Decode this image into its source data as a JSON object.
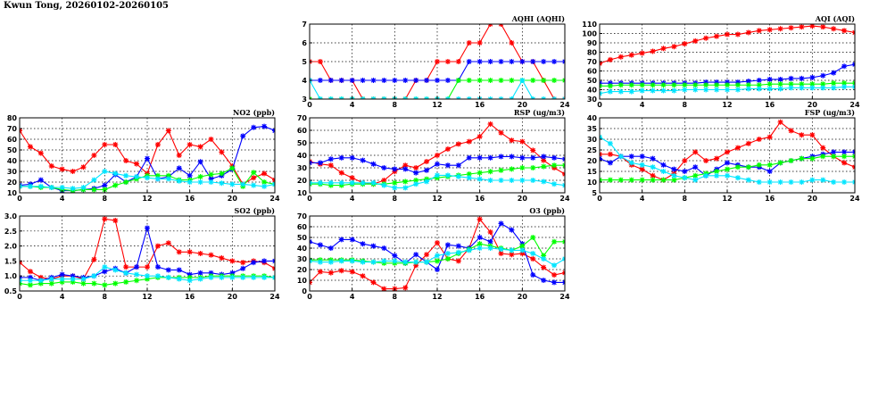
{
  "page": {
    "title": "Kwun Tong, 20260102-20260105"
  },
  "chart_data": [
    {
      "id": "no2",
      "type": "line",
      "title": "NO2 (ppb)",
      "xlim": [
        0,
        24
      ],
      "ylim": [
        10,
        80
      ],
      "xticks": [
        0,
        4,
        8,
        12,
        16,
        20,
        24
      ],
      "yticks": [
        10,
        20,
        30,
        40,
        50,
        60,
        70,
        80
      ],
      "grid": true,
      "x": [
        0,
        1,
        2,
        3,
        4,
        5,
        6,
        7,
        8,
        9,
        10,
        11,
        12,
        13,
        14,
        15,
        16,
        17,
        18,
        19,
        20,
        21,
        22,
        23,
        24
      ],
      "series": [
        {
          "color": "#ff0000",
          "values": [
            68,
            53,
            47,
            35,
            32,
            30,
            34,
            45,
            55,
            55,
            40,
            37,
            28,
            55,
            68,
            45,
            55,
            53,
            60,
            48,
            35,
            18,
            24,
            28,
            22
          ]
        },
        {
          "color": "#0000ff",
          "values": [
            17,
            18,
            22,
            15,
            12,
            12,
            13,
            14,
            17,
            27,
            20,
            25,
            42,
            23,
            25,
            33,
            26,
            39,
            23,
            26,
            32,
            63,
            71,
            72,
            68
          ]
        },
        {
          "color": "#00ff00",
          "values": [
            16,
            16,
            15,
            15,
            13,
            12,
            13,
            13,
            13,
            17,
            20,
            23,
            26,
            26,
            26,
            22,
            22,
            25,
            27,
            28,
            33,
            16,
            29,
            20,
            18
          ]
        },
        {
          "color": "#00e5ff",
          "values": [
            16,
            16,
            16,
            15,
            15,
            14,
            15,
            22,
            30,
            28,
            26,
            25,
            24,
            23,
            23,
            21,
            20,
            20,
            20,
            19,
            18,
            18,
            17,
            16,
            18
          ]
        }
      ]
    },
    {
      "id": "so2",
      "type": "line",
      "title": "SO2 (ppb)",
      "xlim": [
        0,
        24
      ],
      "ylim": [
        0.5,
        3.0
      ],
      "xticks": [
        0,
        4,
        8,
        12,
        16,
        20,
        24
      ],
      "yticks": [
        0.5,
        1.0,
        1.5,
        2.0,
        2.5,
        3.0
      ],
      "ytick_labels": [
        "0.5",
        "1.0",
        "1.5",
        "2.0",
        "2.5",
        "3.0"
      ],
      "grid": true,
      "x": [
        0,
        1,
        2,
        3,
        4,
        5,
        6,
        7,
        8,
        9,
        10,
        11,
        12,
        13,
        14,
        15,
        16,
        17,
        18,
        19,
        20,
        21,
        22,
        23,
        24
      ],
      "series": [
        {
          "color": "#ff0000",
          "values": [
            1.45,
            1.15,
            0.95,
            0.9,
            1.0,
            1.0,
            0.9,
            1.55,
            2.9,
            2.85,
            1.3,
            1.3,
            1.3,
            2.0,
            2.1,
            1.8,
            1.8,
            1.75,
            1.7,
            1.6,
            1.5,
            1.45,
            1.5,
            1.45,
            1.25
          ]
        },
        {
          "color": "#0000ff",
          "values": [
            0.95,
            0.95,
            0.85,
            0.95,
            1.05,
            1.0,
            0.95,
            1.0,
            1.15,
            1.25,
            1.1,
            1.3,
            2.6,
            1.3,
            1.2,
            1.2,
            1.05,
            1.1,
            1.1,
            1.05,
            1.1,
            1.25,
            1.45,
            1.5,
            1.5
          ]
        },
        {
          "color": "#00ff00",
          "values": [
            0.75,
            0.7,
            0.75,
            0.75,
            0.8,
            0.8,
            0.75,
            0.75,
            0.7,
            0.75,
            0.8,
            0.85,
            0.9,
            0.95,
            0.95,
            0.95,
            0.95,
            0.95,
            1.0,
            1.0,
            1.0,
            1.0,
            1.0,
            1.0,
            0.95
          ]
        },
        {
          "color": "#00e5ff",
          "values": [
            0.85,
            0.85,
            0.85,
            0.9,
            0.9,
            0.9,
            0.9,
            1.0,
            1.3,
            1.2,
            1.1,
            1.05,
            1.0,
            1.0,
            0.95,
            0.9,
            0.85,
            0.9,
            0.95,
            0.95,
            0.95,
            0.95,
            0.95,
            0.95,
            0.95
          ]
        }
      ]
    },
    {
      "id": "aqhi",
      "type": "line",
      "title": "AQHI (AQHI)",
      "xlim": [
        0,
        24
      ],
      "ylim": [
        3,
        7
      ],
      "xticks": [
        0,
        4,
        8,
        12,
        16,
        20,
        24
      ],
      "yticks": [
        3,
        4,
        5,
        6,
        7
      ],
      "grid": true,
      "x": [
        0,
        1,
        2,
        3,
        4,
        5,
        6,
        7,
        8,
        9,
        10,
        11,
        12,
        13,
        14,
        15,
        16,
        17,
        18,
        19,
        20,
        21,
        22,
        23,
        24
      ],
      "series": [
        {
          "color": "#ff0000",
          "values": [
            5,
            5,
            4,
            4,
            4,
            3,
            3,
            3,
            3,
            3,
            4,
            4,
            5,
            5,
            5,
            6,
            6,
            7,
            7,
            6,
            5,
            5,
            4,
            3,
            3
          ]
        },
        {
          "color": "#0000ff",
          "values": [
            4,
            4,
            4,
            4,
            4,
            4,
            4,
            4,
            4,
            4,
            4,
            4,
            4,
            4,
            4,
            5,
            5,
            5,
            5,
            5,
            5,
            5,
            5,
            5,
            5
          ]
        },
        {
          "color": "#00ff00",
          "values": [
            3,
            3,
            3,
            3,
            3,
            3,
            3,
            3,
            3,
            3,
            3,
            3,
            3,
            3,
            4,
            4,
            4,
            4,
            4,
            4,
            4,
            4,
            4,
            4,
            4
          ]
        },
        {
          "color": "#00e5ff",
          "values": [
            4,
            3,
            3,
            3,
            3,
            3,
            3,
            3,
            3,
            3,
            3,
            3,
            3,
            3,
            3,
            3,
            3,
            3,
            3,
            3,
            4,
            3,
            3,
            3,
            3
          ]
        }
      ]
    },
    {
      "id": "rsp",
      "type": "line",
      "title": "RSP (ug/m3)",
      "xlim": [
        0,
        24
      ],
      "ylim": [
        10,
        70
      ],
      "xticks": [
        0,
        4,
        8,
        12,
        16,
        20,
        24
      ],
      "yticks": [
        10,
        20,
        30,
        40,
        50,
        60,
        70
      ],
      "grid": true,
      "x": [
        0,
        1,
        2,
        3,
        4,
        5,
        6,
        7,
        8,
        9,
        10,
        11,
        12,
        13,
        14,
        15,
        16,
        17,
        18,
        19,
        20,
        21,
        22,
        23,
        24
      ],
      "series": [
        {
          "color": "#ff0000",
          "values": [
            35,
            33,
            32,
            26,
            22,
            18,
            17,
            20,
            27,
            32,
            30,
            35,
            40,
            45,
            49,
            51,
            55,
            65,
            58,
            52,
            51,
            44,
            36,
            30,
            25
          ]
        },
        {
          "color": "#0000ff",
          "values": [
            34,
            34,
            37,
            38,
            38,
            36,
            33,
            30,
            29,
            29,
            26,
            28,
            33,
            32,
            32,
            38,
            38,
            38,
            39,
            39,
            38,
            38,
            39,
            38,
            37
          ]
        },
        {
          "color": "#00ff00",
          "values": [
            17,
            17,
            16,
            16,
            17,
            17,
            17,
            17,
            18,
            19,
            20,
            21,
            22,
            23,
            24,
            25,
            26,
            27,
            28,
            29,
            30,
            30,
            31,
            32,
            32
          ]
        },
        {
          "color": "#00e5ff",
          "values": [
            18,
            18,
            18,
            18,
            18,
            18,
            18,
            16,
            14,
            14,
            17,
            19,
            24,
            24,
            23,
            22,
            21,
            20,
            20,
            20,
            20,
            20,
            19,
            17,
            16
          ]
        }
      ]
    },
    {
      "id": "o3",
      "type": "line",
      "title": "O3 (ppb)",
      "xlim": [
        0,
        24
      ],
      "ylim": [
        0,
        70
      ],
      "xticks": [
        0,
        4,
        8,
        12,
        16,
        20,
        24
      ],
      "yticks": [
        0,
        10,
        20,
        30,
        40,
        50,
        60,
        70
      ],
      "grid": true,
      "x": [
        0,
        1,
        2,
        3,
        4,
        5,
        6,
        7,
        8,
        9,
        10,
        11,
        12,
        13,
        14,
        15,
        16,
        17,
        18,
        19,
        20,
        21,
        22,
        23,
        24
      ],
      "series": [
        {
          "color": "#ff0000",
          "values": [
            8,
            18,
            17,
            19,
            18,
            14,
            8,
            2,
            2,
            3,
            24,
            34,
            45,
            30,
            28,
            40,
            67,
            55,
            35,
            34,
            35,
            30,
            22,
            15,
            17
          ]
        },
        {
          "color": "#0000ff",
          "values": [
            46,
            43,
            40,
            48,
            48,
            44,
            42,
            40,
            33,
            26,
            34,
            27,
            20,
            43,
            42,
            40,
            50,
            46,
            63,
            57,
            44,
            15,
            10,
            8,
            8
          ]
        },
        {
          "color": "#00ff00",
          "values": [
            29,
            29,
            29,
            29,
            29,
            28,
            27,
            26,
            26,
            26,
            27,
            27,
            28,
            30,
            35,
            39,
            44,
            42,
            40,
            38,
            42,
            50,
            33,
            46,
            46
          ]
        },
        {
          "color": "#00e5ff",
          "values": [
            28,
            27,
            27,
            28,
            28,
            27,
            27,
            28,
            28,
            27,
            27,
            27,
            33,
            35,
            36,
            38,
            40,
            40,
            39,
            38,
            38,
            35,
            30,
            24,
            30
          ]
        }
      ]
    },
    {
      "id": "aqi",
      "type": "line",
      "title": "AQI (AQI)",
      "xlim": [
        0,
        24
      ],
      "ylim": [
        30,
        110
      ],
      "xticks": [
        0,
        4,
        8,
        12,
        16,
        20,
        24
      ],
      "yticks": [
        30,
        40,
        50,
        60,
        70,
        80,
        90,
        100,
        110
      ],
      "grid": true,
      "x": [
        0,
        1,
        2,
        3,
        4,
        5,
        6,
        7,
        8,
        9,
        10,
        11,
        12,
        13,
        14,
        15,
        16,
        17,
        18,
        19,
        20,
        21,
        22,
        23,
        24
      ],
      "series": [
        {
          "color": "#ff0000",
          "values": [
            68,
            72,
            75,
            77,
            79,
            81,
            84,
            86,
            89,
            92,
            95,
            97,
            99,
            99,
            101,
            103,
            104,
            105,
            106,
            107,
            108,
            107,
            105,
            103,
            101
          ]
        },
        {
          "color": "#0000ff",
          "values": [
            47,
            47,
            47,
            47,
            47,
            47,
            47,
            47,
            47,
            47,
            48,
            48,
            48,
            48,
            49,
            50,
            51,
            51,
            52,
            52,
            53,
            55,
            58,
            65,
            67
          ]
        },
        {
          "color": "#00ff00",
          "values": [
            44,
            44,
            45,
            45,
            45,
            45,
            45,
            45,
            45,
            45,
            45,
            45,
            45,
            45,
            45,
            45,
            46,
            46,
            46,
            46,
            46,
            46,
            47,
            47,
            47
          ]
        },
        {
          "color": "#00e5ff",
          "values": [
            36,
            38,
            38,
            38,
            39,
            39,
            39,
            39,
            40,
            40,
            40,
            40,
            40,
            40,
            41,
            41,
            41,
            41,
            42,
            42,
            42,
            42,
            42,
            43,
            43
          ]
        }
      ]
    },
    {
      "id": "fsp",
      "type": "line",
      "title": "FSP (ug/m3)",
      "xlim": [
        0,
        24
      ],
      "ylim": [
        5,
        40
      ],
      "xticks": [
        0,
        4,
        8,
        12,
        16,
        20,
        24
      ],
      "yticks": [
        5,
        10,
        15,
        20,
        25,
        30,
        35,
        40
      ],
      "grid": true,
      "x": [
        0,
        1,
        2,
        3,
        4,
        5,
        6,
        7,
        8,
        9,
        10,
        11,
        12,
        13,
        14,
        15,
        16,
        17,
        18,
        19,
        20,
        21,
        22,
        23,
        24
      ],
      "series": [
        {
          "color": "#ff0000",
          "values": [
            23,
            23,
            22,
            18,
            16,
            13,
            11,
            14,
            20,
            24,
            20,
            21,
            24,
            26,
            28,
            30,
            31,
            38,
            34,
            32,
            32,
            26,
            22,
            19,
            17
          ]
        },
        {
          "color": "#0000ff",
          "values": [
            21,
            19,
            22,
            22,
            22,
            21,
            18,
            16,
            15,
            17,
            13,
            16,
            19,
            18,
            17,
            17,
            15,
            19,
            20,
            21,
            22,
            23,
            24,
            24,
            24
          ]
        },
        {
          "color": "#00ff00",
          "values": [
            11,
            11,
            11,
            11,
            11,
            11,
            11,
            11,
            12,
            13,
            14,
            15,
            16,
            17,
            17,
            18,
            18,
            19,
            20,
            21,
            21,
            22,
            22,
            22,
            22
          ]
        },
        {
          "color": "#00e5ff",
          "values": [
            31,
            28,
            22,
            19,
            18,
            17,
            15,
            13,
            12,
            11,
            13,
            13,
            13,
            12,
            11,
            10,
            10,
            10,
            10,
            10,
            11,
            11,
            10,
            10,
            10
          ]
        }
      ]
    }
  ]
}
